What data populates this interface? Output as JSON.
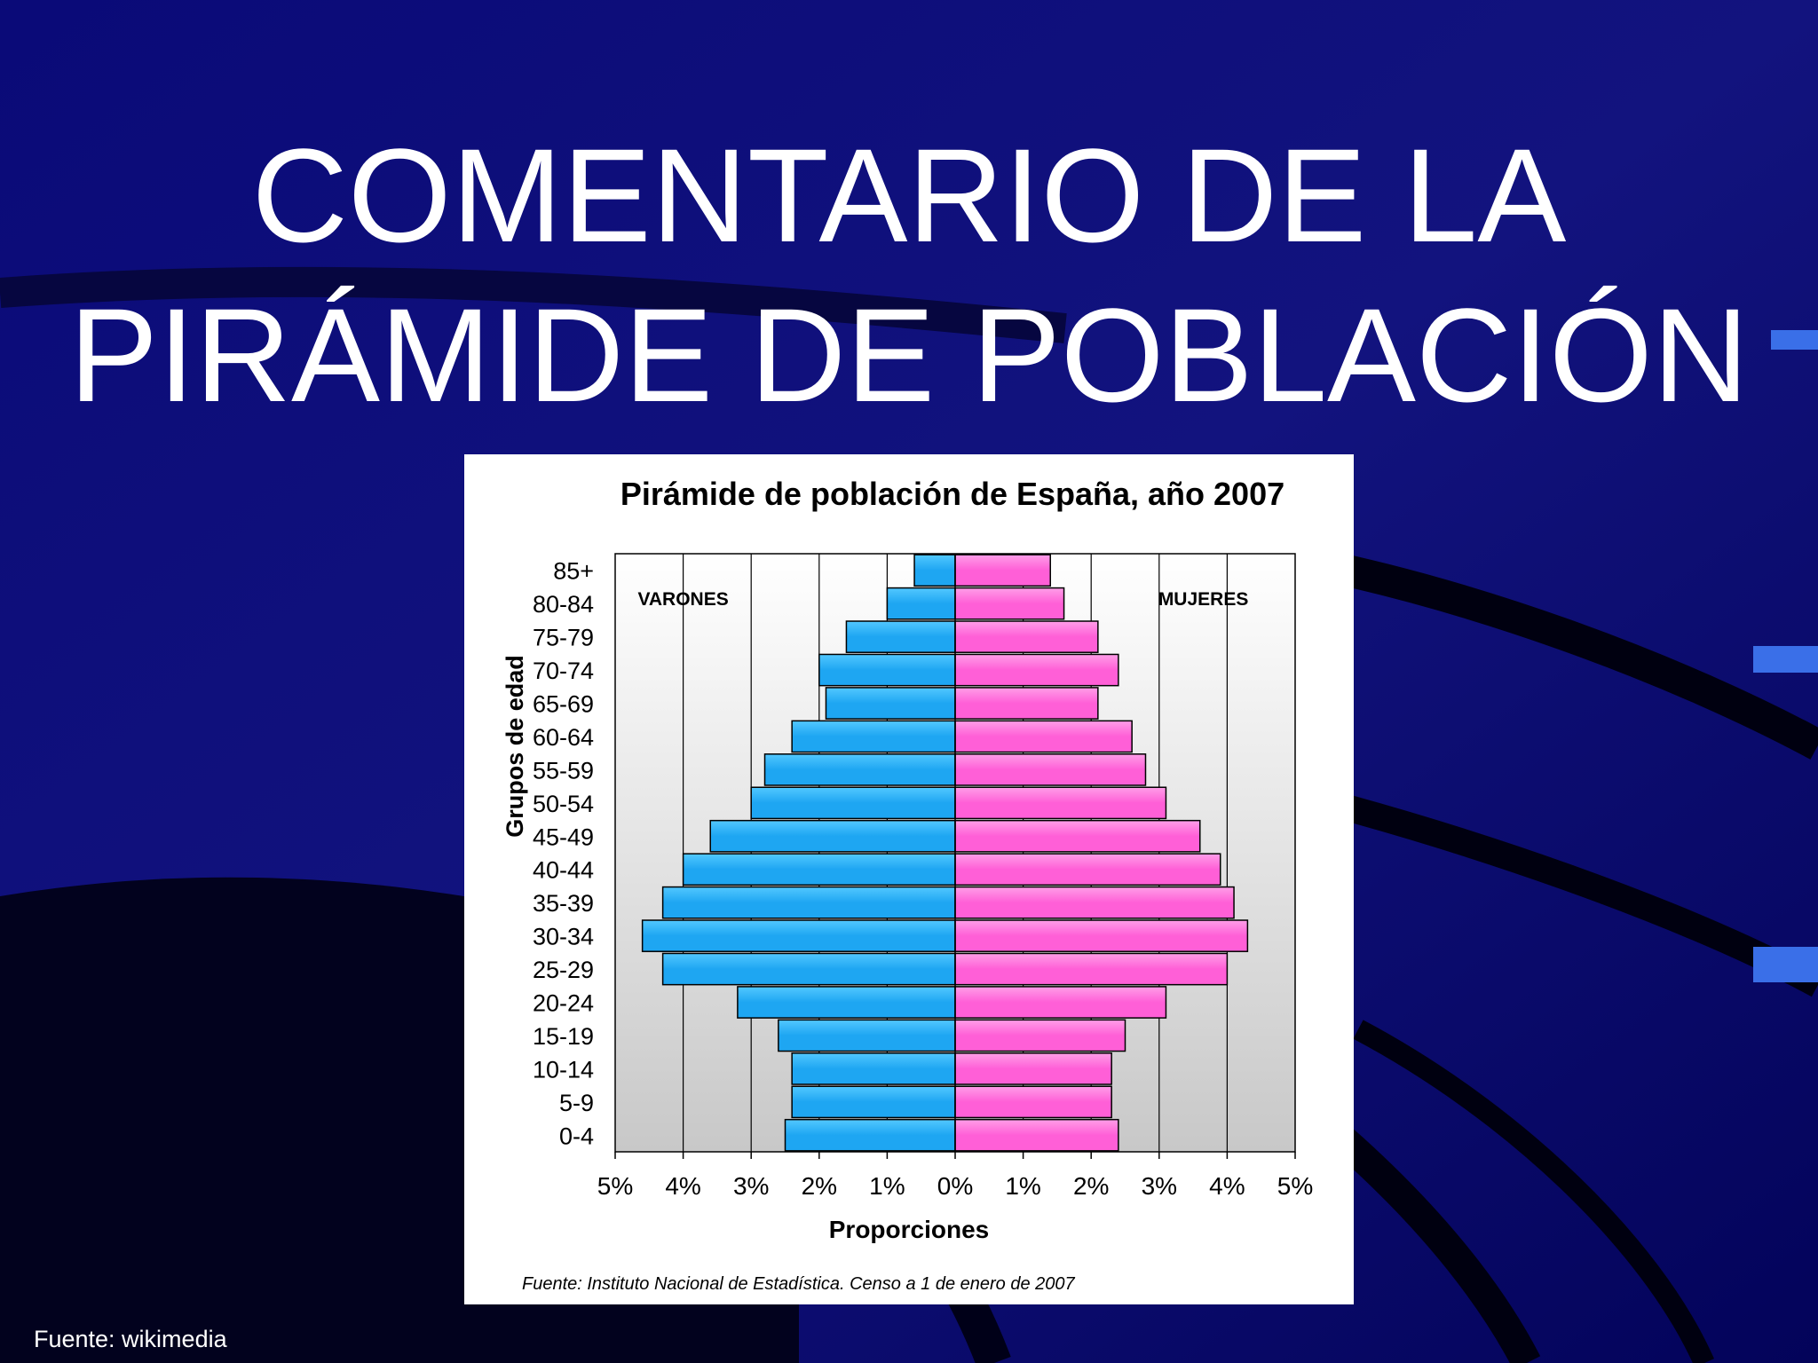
{
  "slide": {
    "title_line1": "COMENTARIO DE LA",
    "title_line2": "PIRÁMIDE DE POBLACIÓN",
    "footer": "Fuente: wikimedia"
  },
  "chart_data": {
    "type": "bar",
    "title": "Pirámide de población de España, año 2007",
    "xlabel": "Proporciones",
    "ylabel": "Grupos de edad",
    "source": "Fuente: Instituto Nacional de Estadística. Censo a 1 de enero de 2007",
    "categories": [
      "0-4",
      "5-9",
      "10-14",
      "15-19",
      "20-24",
      "25-29",
      "30-34",
      "35-39",
      "40-44",
      "45-49",
      "50-54",
      "55-59",
      "60-64",
      "65-69",
      "70-74",
      "75-79",
      "80-84",
      "85+"
    ],
    "series": [
      {
        "name": "VARONES",
        "values": [
          2.5,
          2.4,
          2.4,
          2.6,
          3.2,
          4.3,
          4.6,
          4.3,
          4.0,
          3.6,
          3.0,
          2.8,
          2.4,
          1.9,
          2.0,
          1.6,
          1.0,
          0.6
        ],
        "colors": [
          "#1ea6f2",
          "#52c8ff"
        ]
      },
      {
        "name": "MUJERES",
        "values": [
          2.4,
          2.3,
          2.3,
          2.5,
          3.1,
          4.0,
          4.3,
          4.1,
          3.9,
          3.6,
          3.1,
          2.8,
          2.6,
          2.1,
          2.4,
          2.1,
          1.6,
          1.4
        ],
        "colors": [
          "#ff5fd7",
          "#ff9ee8"
        ]
      }
    ],
    "xlim": [
      -5,
      5
    ],
    "xticks": [
      "5%",
      "4%",
      "3%",
      "2%",
      "1%",
      "0%",
      "1%",
      "2%",
      "3%",
      "4%",
      "5%"
    ],
    "grid": true,
    "orientation": "horizontal"
  }
}
